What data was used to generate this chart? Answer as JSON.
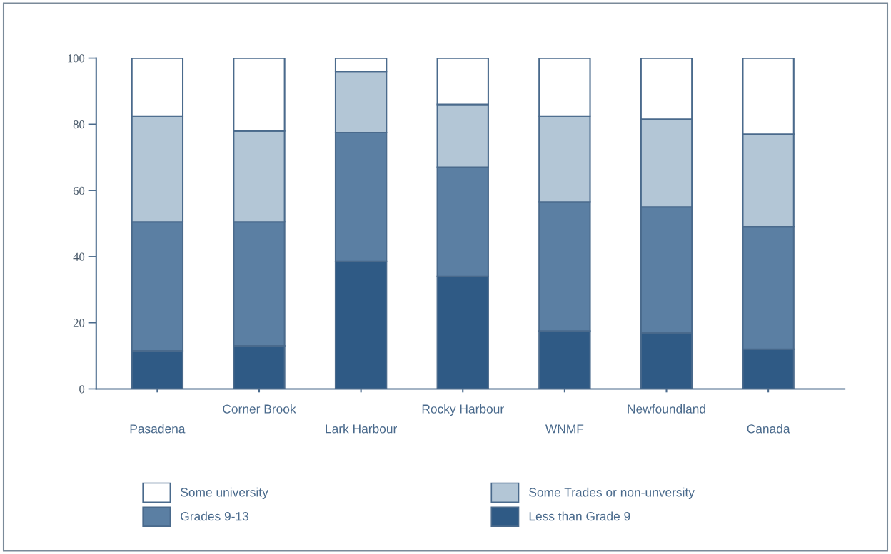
{
  "chart_data": {
    "type": "bar",
    "stacked": true,
    "categories": [
      "Pasadena",
      "Corner Brook",
      "Lark Harbour",
      "Rocky Harbour",
      "WNMF",
      "Newfoundland",
      "Canada"
    ],
    "series": [
      {
        "name": "Less than Grade 9",
        "color": "#2f5a85",
        "values": [
          11.5,
          13,
          38.5,
          34,
          17.5,
          17,
          12
        ]
      },
      {
        "name": "Grades 9-13",
        "color": "#5b7fa3",
        "values": [
          39,
          37.5,
          39,
          33,
          39,
          38,
          37
        ]
      },
      {
        "name": "Some Trades or non-unversity",
        "color": "#b3c6d6",
        "values": [
          32,
          27.5,
          18.5,
          19,
          26,
          26.5,
          28
        ]
      },
      {
        "name": "Some university",
        "color": "#ffffff",
        "values": [
          17.5,
          22,
          4,
          14,
          17.5,
          18.5,
          23
        ]
      }
    ],
    "ylim": [
      0,
      100
    ],
    "yticks": [
      0,
      20,
      40,
      60,
      80,
      100
    ],
    "grid": false,
    "legend": "bottom"
  }
}
